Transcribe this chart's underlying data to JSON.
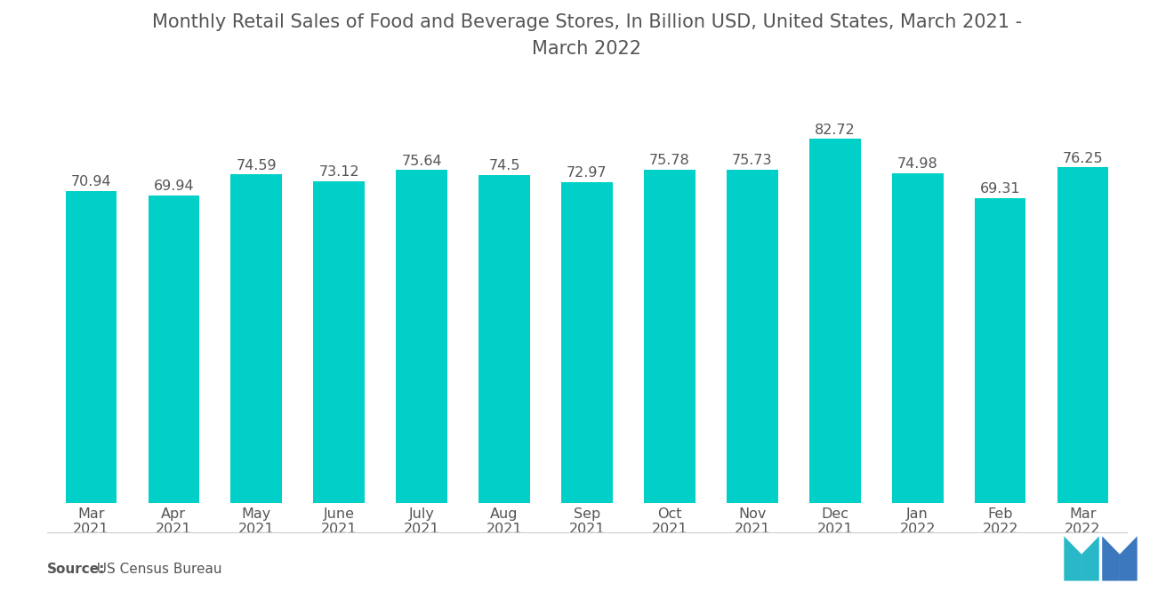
{
  "title": "Monthly Retail Sales of Food and Beverage Stores, In Billion USD, United States, March 2021 -\nMarch 2022",
  "categories": [
    "Mar\n2021",
    "Apr\n2021",
    "May\n2021",
    "June\n2021",
    "July\n2021",
    "Aug\n2021",
    "Sep\n2021",
    "Oct\n2021",
    "Nov\n2021",
    "Dec\n2021",
    "Jan\n2022",
    "Feb\n2022",
    "Mar\n2022"
  ],
  "values": [
    70.94,
    69.94,
    74.59,
    73.12,
    75.64,
    74.5,
    72.97,
    75.78,
    75.73,
    82.72,
    74.98,
    69.31,
    76.25
  ],
  "bar_color": "#00D0C8",
  "value_labels": [
    "70.94",
    "69.94",
    "74.59",
    "73.12",
    "75.64",
    "74.5",
    "72.97",
    "75.78",
    "75.73",
    "82.72",
    "74.98",
    "69.31",
    "76.25"
  ],
  "source_label": "Source:",
  "source_text": "  US Census Bureau",
  "title_fontsize": 15,
  "label_fontsize": 11.5,
  "value_fontsize": 11.5,
  "source_fontsize": 11,
  "background_color": "#ffffff",
  "text_color": "#555555",
  "ylim": [
    0,
    95
  ]
}
